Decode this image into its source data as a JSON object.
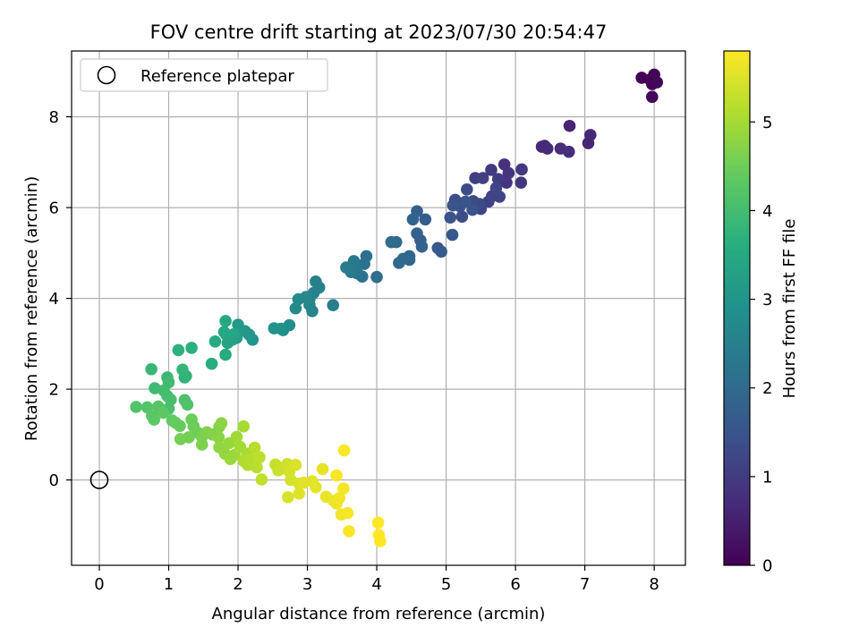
{
  "chart_data": {
    "type": "scatter",
    "title": "FOV centre drift starting at 2023/07/30 20:54:47",
    "xlabel": "Angular distance from reference (arcmin)",
    "ylabel": "Rotation from reference (arcmin)",
    "xlim": [
      -0.4,
      8.45
    ],
    "ylim": [
      -1.88,
      9.45
    ],
    "xticks": [
      "0",
      "1",
      "2",
      "3",
      "4",
      "5",
      "6",
      "7",
      "8"
    ],
    "yticks": [
      "0",
      "2",
      "4",
      "6",
      "8"
    ],
    "xtick_values": [
      0,
      1,
      2,
      3,
      4,
      5,
      6,
      7,
      8
    ],
    "ytick_values": [
      0,
      2,
      4,
      6,
      8
    ],
    "grid": true,
    "legend": {
      "placement": "upper-left",
      "entries": [
        "Reference platepar"
      ]
    },
    "reference": {
      "x": 0,
      "y": 0,
      "label": "Reference platepar"
    },
    "colorbar": {
      "label": "Hours from first FF file",
      "range": [
        0,
        5.8
      ],
      "ticks": [
        "0",
        "1",
        "2",
        "3",
        "4",
        "5"
      ],
      "tick_values": [
        0,
        1,
        2,
        3,
        4,
        5
      ],
      "colormap": "viridis"
    },
    "points": [
      [
        7.82,
        8.86,
        0.0
      ],
      [
        7.94,
        8.82,
        0.02
      ],
      [
        8.0,
        8.93,
        0.04
      ],
      [
        7.97,
        8.72,
        0.06
      ],
      [
        8.04,
        8.76,
        0.08
      ],
      [
        7.97,
        8.44,
        0.1
      ],
      [
        6.78,
        7.8,
        0.6
      ],
      [
        7.05,
        7.42,
        0.62
      ],
      [
        7.08,
        7.6,
        0.64
      ],
      [
        6.38,
        7.34,
        0.66
      ],
      [
        6.42,
        7.36,
        0.68
      ],
      [
        6.46,
        7.3,
        0.7
      ],
      [
        6.65,
        7.3,
        0.72
      ],
      [
        6.77,
        7.23,
        0.74
      ],
      [
        5.84,
        6.95,
        0.8
      ],
      [
        5.87,
        6.55,
        0.84
      ],
      [
        5.9,
        6.76,
        0.88
      ],
      [
        6.08,
        6.55,
        0.92
      ],
      [
        6.09,
        6.84,
        0.96
      ],
      [
        5.65,
        6.83,
        1.0
      ],
      [
        5.75,
        6.63,
        1.03
      ],
      [
        5.42,
        6.65,
        1.06
      ],
      [
        5.53,
        6.65,
        1.09
      ],
      [
        5.61,
        6.13,
        1.12
      ],
      [
        5.66,
        6.25,
        1.15
      ],
      [
        5.77,
        6.24,
        1.18
      ],
      [
        5.72,
        6.43,
        1.21
      ],
      [
        5.5,
        5.97,
        1.24
      ],
      [
        5.48,
        6.08,
        1.27
      ],
      [
        5.39,
        6.14,
        1.3
      ],
      [
        5.3,
        6.4,
        1.33
      ],
      [
        5.23,
        5.8,
        1.36
      ],
      [
        5.13,
        6.17,
        1.39
      ],
      [
        5.2,
        6.03,
        1.42
      ],
      [
        5.06,
        5.78,
        1.45
      ],
      [
        5.38,
        5.95,
        1.48
      ],
      [
        5.28,
        6.13,
        1.51
      ],
      [
        5.1,
        6.05,
        1.54
      ],
      [
        5.09,
        5.4,
        1.58
      ],
      [
        4.88,
        5.11,
        1.62
      ],
      [
        4.93,
        5.03,
        1.66
      ],
      [
        4.7,
        5.74,
        1.7
      ],
      [
        4.58,
        5.92,
        1.74
      ],
      [
        4.58,
        5.43,
        1.77
      ],
      [
        4.63,
        5.28,
        1.8
      ],
      [
        4.65,
        5.14,
        1.83
      ],
      [
        4.52,
        5.74,
        1.86
      ],
      [
        4.47,
        4.93,
        1.89
      ],
      [
        4.47,
        4.85,
        1.92
      ],
      [
        4.38,
        4.87,
        1.95
      ],
      [
        4.32,
        4.78,
        1.98
      ],
      [
        4.28,
        5.24,
        2.01
      ],
      [
        4.21,
        5.24,
        2.04
      ],
      [
        4.0,
        4.47,
        2.08
      ],
      [
        3.85,
        4.93,
        2.12
      ],
      [
        3.82,
        4.76,
        2.16
      ],
      [
        3.79,
        4.48,
        2.2
      ],
      [
        3.72,
        4.55,
        2.24
      ],
      [
        3.72,
        4.7,
        2.28
      ],
      [
        3.67,
        4.82,
        2.32
      ],
      [
        3.63,
        4.58,
        2.36
      ],
      [
        3.56,
        4.68,
        2.4
      ],
      [
        3.37,
        3.85,
        2.45
      ],
      [
        3.17,
        4.24,
        2.5
      ],
      [
        3.12,
        4.37,
        2.53
      ],
      [
        3.09,
        4.12,
        2.56
      ],
      [
        3.03,
        3.98,
        2.59
      ],
      [
        3.07,
        3.72,
        2.62
      ],
      [
        3.03,
        3.86,
        2.65
      ],
      [
        2.98,
        4.03,
        2.68
      ],
      [
        2.87,
        3.98,
        2.71
      ],
      [
        2.83,
        3.78,
        2.74
      ],
      [
        2.74,
        3.41,
        2.8
      ],
      [
        2.65,
        3.3,
        2.85
      ],
      [
        2.62,
        3.33,
        2.9
      ],
      [
        2.52,
        3.34,
        2.95
      ],
      [
        2.21,
        3.09,
        3.0
      ],
      [
        2.16,
        3.2,
        3.04
      ],
      [
        2.1,
        3.28,
        3.08
      ],
      [
        2.03,
        3.3,
        3.12
      ],
      [
        2.0,
        3.42,
        3.16
      ],
      [
        1.98,
        3.13,
        3.2
      ],
      [
        1.92,
        3.09,
        3.24
      ],
      [
        1.87,
        3.14,
        3.28
      ],
      [
        1.83,
        3.2,
        3.32
      ],
      [
        1.85,
        3.02,
        3.36
      ],
      [
        1.94,
        3.21,
        3.4
      ],
      [
        1.8,
        3.26,
        3.44
      ],
      [
        1.82,
        3.5,
        3.48
      ],
      [
        1.67,
        3.05,
        3.52
      ],
      [
        1.82,
        2.76,
        3.56
      ],
      [
        1.62,
        2.56,
        3.6
      ],
      [
        1.33,
        2.91,
        3.64
      ],
      [
        1.14,
        2.86,
        3.68
      ],
      [
        1.23,
        2.26,
        3.72
      ],
      [
        1.25,
        2.29,
        3.76
      ],
      [
        1.2,
        2.43,
        3.8
      ],
      [
        0.75,
        2.44,
        3.84
      ],
      [
        0.98,
        2.26,
        3.88
      ],
      [
        0.8,
        2.02,
        3.92
      ],
      [
        1.0,
        2.15,
        3.96
      ],
      [
        0.93,
        1.97,
        4.0
      ],
      [
        0.98,
        1.85,
        4.03
      ],
      [
        1.03,
        1.77,
        4.06
      ],
      [
        1.0,
        1.57,
        4.09
      ],
      [
        1.23,
        1.76,
        4.12
      ],
      [
        1.27,
        1.66,
        4.15
      ],
      [
        0.53,
        1.61,
        4.18
      ],
      [
        0.69,
        1.6,
        4.21
      ],
      [
        0.85,
        1.62,
        4.24
      ],
      [
        0.76,
        1.41,
        4.27
      ],
      [
        0.79,
        1.33,
        4.3
      ],
      [
        0.92,
        1.48,
        4.33
      ],
      [
        1.05,
        1.31,
        4.36
      ],
      [
        1.1,
        1.26,
        4.39
      ],
      [
        1.16,
        1.19,
        4.42
      ],
      [
        1.33,
        1.33,
        4.45
      ],
      [
        1.36,
        1.18,
        4.48
      ],
      [
        1.42,
        1.04,
        4.51
      ],
      [
        1.29,
        0.94,
        4.54
      ],
      [
        1.17,
        0.9,
        4.57
      ],
      [
        1.48,
        0.95,
        4.6
      ],
      [
        1.48,
        0.78,
        4.63
      ],
      [
        1.55,
        1.05,
        4.66
      ],
      [
        1.63,
        1.0,
        4.69
      ],
      [
        1.73,
        1.17,
        4.72
      ],
      [
        1.72,
        0.94,
        4.75
      ],
      [
        1.76,
        1.25,
        4.78
      ],
      [
        1.73,
        0.72,
        4.81
      ],
      [
        1.81,
        0.58,
        4.84
      ],
      [
        1.87,
        0.81,
        4.87
      ],
      [
        1.89,
        0.46,
        4.9
      ],
      [
        1.95,
        0.55,
        4.93
      ],
      [
        1.98,
        0.95,
        4.96
      ],
      [
        2.03,
        0.73,
        4.99
      ],
      [
        2.08,
        1.18,
        5.02
      ],
      [
        2.13,
        0.58,
        5.05
      ],
      [
        2.08,
        0.42,
        5.08
      ],
      [
        2.14,
        0.33,
        5.11
      ],
      [
        2.19,
        0.45,
        5.14
      ],
      [
        2.24,
        0.71,
        5.17
      ],
      [
        2.27,
        0.28,
        5.2
      ],
      [
        2.31,
        0.5,
        5.23
      ],
      [
        2.34,
        0.01,
        5.26
      ],
      [
        2.54,
        0.34,
        5.29
      ],
      [
        2.58,
        0.21,
        5.32
      ],
      [
        2.63,
        0.26,
        5.35
      ],
      [
        2.71,
        0.35,
        5.38
      ],
      [
        2.74,
        0.19,
        5.41
      ],
      [
        2.76,
        0.0,
        5.44
      ],
      [
        2.72,
        -0.38,
        5.46
      ],
      [
        2.83,
        0.33,
        5.48
      ],
      [
        2.88,
        -0.08,
        5.5
      ],
      [
        2.88,
        -0.3,
        5.52
      ],
      [
        2.95,
        -0.06,
        5.54
      ],
      [
        3.07,
        -0.03,
        5.56
      ],
      [
        3.12,
        -0.16,
        5.58
      ],
      [
        3.22,
        0.24,
        5.6
      ],
      [
        3.27,
        -0.37,
        5.62
      ],
      [
        3.38,
        -0.46,
        5.64
      ],
      [
        3.42,
        -0.52,
        5.66
      ],
      [
        3.46,
        -0.4,
        5.68
      ],
      [
        3.49,
        -0.76,
        5.7
      ],
      [
        3.52,
        -0.19,
        5.72
      ],
      [
        3.58,
        -0.73,
        5.74
      ],
      [
        3.6,
        -1.13,
        5.75
      ],
      [
        3.42,
        0.1,
        5.76
      ],
      [
        3.53,
        0.65,
        5.77
      ],
      [
        4.02,
        -0.94,
        5.78
      ],
      [
        4.03,
        -1.21,
        5.79
      ],
      [
        4.05,
        -1.35,
        5.8
      ]
    ]
  }
}
